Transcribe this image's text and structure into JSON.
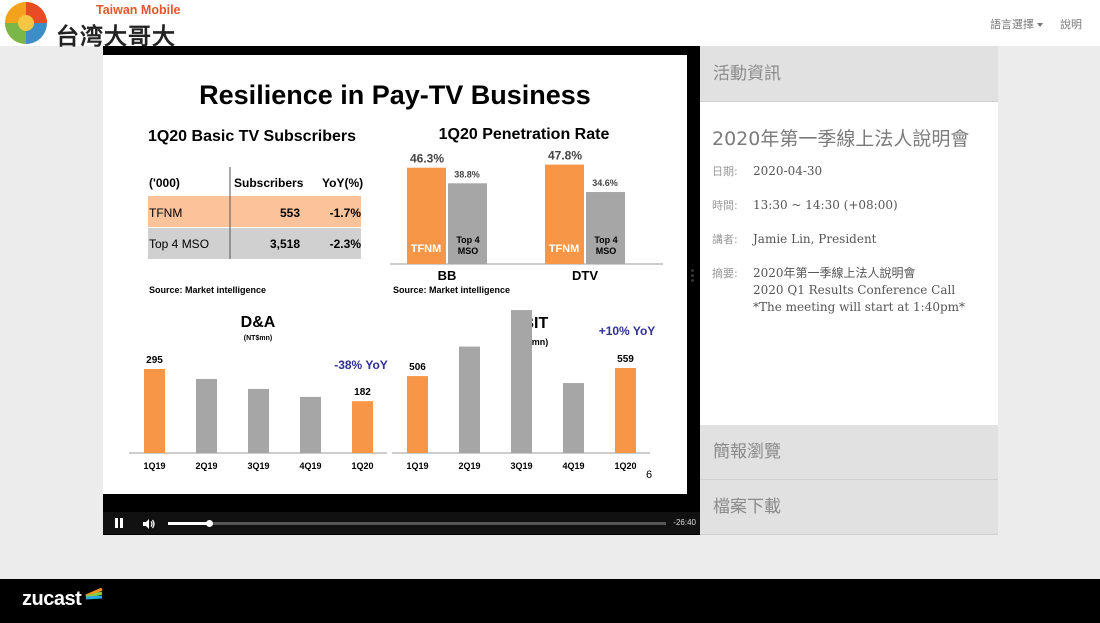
{
  "header": {
    "logo_en": "Taiwan Mobile",
    "logo_zh": "台湾大哥大",
    "language_menu": "語言選擇",
    "help": "說明"
  },
  "player": {
    "time_remaining": "-26:40",
    "progress_fraction": 0.083
  },
  "slide": {
    "title": "Resilience in Pay-TV Business",
    "page_number": "6",
    "subscribers": {
      "title": "1Q20 Basic TV Subscribers",
      "headers": [
        "('000)",
        "Subscribers",
        "YoY(%)"
      ],
      "rows": [
        {
          "name": "TFNM",
          "subs": "553",
          "yoy": "-1.7%"
        },
        {
          "name": "Top 4 MSO",
          "subs": "3,518",
          "yoy": "-2.3%"
        }
      ],
      "source": "Source: Market intelligence"
    },
    "penetration": {
      "title": "1Q20 Penetration Rate",
      "source": "Source: Market intelligence",
      "series_labels": [
        "TFNM",
        "Top 4 MSO"
      ]
    },
    "da": {
      "title": "D&A",
      "unit": "(NT$mn)",
      "annotation": "-38% YoY"
    },
    "ebit": {
      "title": "EBIT",
      "unit": "(NT$mn)",
      "annotation": "+10% YoY"
    }
  },
  "panel": {
    "event_info": "活動資訊",
    "event_title": "2020年第一季線上法人說明會",
    "date_label": "日期:",
    "date": "2020-04-30",
    "time_label": "時間:",
    "time": "13:30 ~ 14:30 (+08:00)",
    "speaker_label": "講者:",
    "speaker": "Jamie Lin, President",
    "summary_label": "摘要:",
    "summary_line1": "2020年第一季線上法人說明會",
    "summary_line2": "2020 Q1 Results Conference Call",
    "summary_line3": "*The meeting will start at 1:40pm*",
    "slides_browse": "簡報瀏覽",
    "file_download": "檔案下載"
  },
  "footer": {
    "brand": "zucast"
  },
  "colors": {
    "orange": "#f79646",
    "gray": "#a6a6a6"
  },
  "chart_data": [
    {
      "type": "bar",
      "title": "1Q20 Penetration Rate",
      "categories": [
        "BB",
        "DTV"
      ],
      "series": [
        {
          "name": "TFNM",
          "values": [
            46.3,
            47.8
          ]
        },
        {
          "name": "Top 4 MSO",
          "values": [
            38.8,
            34.6
          ]
        }
      ],
      "value_labels": [
        [
          "46.3%",
          "47.8%"
        ],
        [
          "38.8%",
          "34.6%"
        ]
      ]
    },
    {
      "type": "bar",
      "title": "D&A",
      "ylabel": "(NT$mn)",
      "categories": [
        "1Q19",
        "2Q19",
        "3Q19",
        "4Q19",
        "1Q20"
      ],
      "values": [
        295,
        260,
        225,
        197,
        182
      ],
      "labeled": [
        true,
        false,
        false,
        false,
        true
      ],
      "highlight": [
        true,
        false,
        false,
        false,
        true
      ],
      "annotation": "-38% YoY"
    },
    {
      "type": "bar",
      "title": "EBIT",
      "ylabel": "(NT$mn)",
      "categories": [
        "1Q19",
        "2Q19",
        "3Q19",
        "4Q19",
        "1Q20"
      ],
      "values": [
        506,
        700,
        940,
        460,
        559
      ],
      "labeled": [
        true,
        false,
        false,
        false,
        true
      ],
      "highlight": [
        true,
        false,
        false,
        false,
        true
      ],
      "annotation": "+10% YoY"
    }
  ]
}
